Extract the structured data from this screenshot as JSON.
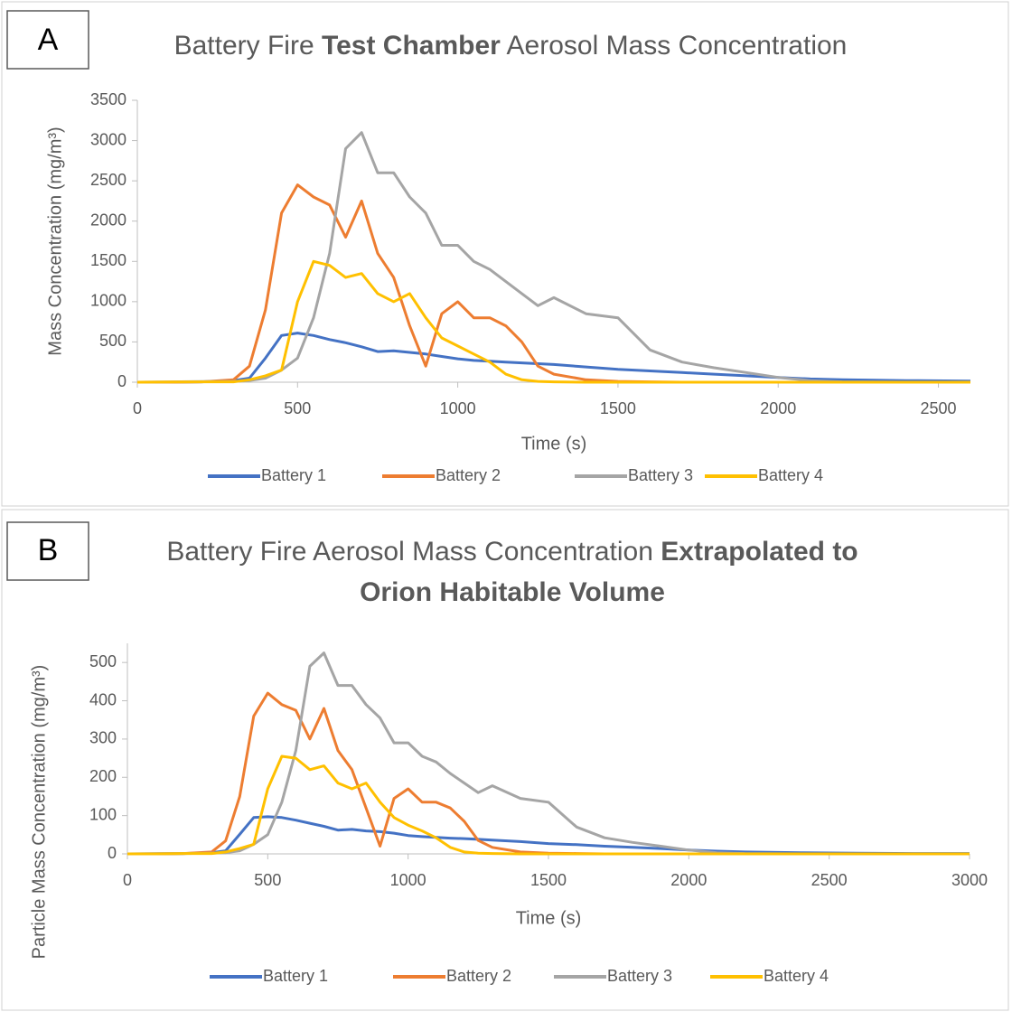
{
  "chart_data": [
    {
      "type": "line",
      "panel_label": "A",
      "title": [
        [
          {
            "text": "Battery Fire",
            "bold": false
          },
          {
            "text": "Test Chamber",
            "bold": true
          },
          {
            "text": "Aerosol Mass Concentration",
            "bold": false
          }
        ]
      ],
      "x_label": "Time (s)",
      "y_label": "Mass Concentration (mg/m³)",
      "xlim": [
        0,
        2600
      ],
      "xticks": [
        0,
        500,
        1000,
        1500,
        2000,
        2500
      ],
      "ylim": [
        0,
        3500
      ],
      "yticks": [
        0,
        500,
        1000,
        1500,
        2000,
        2500,
        3000,
        3500
      ],
      "x": [
        0,
        100,
        200,
        300,
        350,
        400,
        450,
        500,
        550,
        600,
        650,
        700,
        750,
        800,
        850,
        900,
        950,
        1000,
        1050,
        1100,
        1150,
        1200,
        1250,
        1300,
        1400,
        1500,
        1600,
        1700,
        1800,
        1900,
        2000,
        2100,
        2200,
        2400,
        2600
      ],
      "series": [
        {
          "name": "Battery 1",
          "color": "#4472c4",
          "values": [
            0,
            0,
            5,
            20,
            50,
            300,
            580,
            610,
            580,
            530,
            490,
            440,
            380,
            390,
            370,
            350,
            320,
            290,
            270,
            260,
            250,
            240,
            230,
            220,
            190,
            160,
            140,
            120,
            100,
            80,
            60,
            40,
            30,
            20,
            15
          ]
        },
        {
          "name": "Battery 2",
          "color": "#ed7d31",
          "values": [
            0,
            0,
            5,
            30,
            200,
            900,
            2100,
            2450,
            2300,
            2200,
            1800,
            2250,
            1600,
            1300,
            700,
            200,
            850,
            1000,
            800,
            800,
            700,
            500,
            200,
            100,
            30,
            10,
            5,
            0,
            0,
            0,
            0,
            0,
            0,
            0,
            0
          ]
        },
        {
          "name": "Battery 3",
          "color": "#a5a5a5",
          "values": [
            0,
            5,
            8,
            10,
            20,
            50,
            150,
            300,
            800,
            1600,
            2900,
            3100,
            2600,
            2600,
            2300,
            2100,
            1700,
            1700,
            1500,
            1400,
            1250,
            1100,
            950,
            1050,
            850,
            800,
            400,
            250,
            180,
            120,
            60,
            20,
            5,
            0,
            0
          ]
        },
        {
          "name": "Battery 4",
          "color": "#ffc000",
          "values": [
            0,
            2,
            5,
            5,
            30,
            80,
            150,
            1000,
            1500,
            1450,
            1300,
            1350,
            1100,
            1000,
            1100,
            800,
            550,
            450,
            350,
            250,
            100,
            30,
            10,
            5,
            0,
            0,
            0,
            0,
            0,
            0,
            0,
            0,
            0,
            0,
            0
          ]
        }
      ]
    },
    {
      "type": "line",
      "panel_label": "B",
      "title": [
        [
          {
            "text": "Battery Fire Aerosol Mass Concentration",
            "bold": false
          },
          {
            "text": "Extrapolated to",
            "bold": true
          }
        ],
        [
          {
            "text": "Orion Habitable Volume",
            "bold": true
          }
        ]
      ],
      "x_label": "Time (s)",
      "y_label": "Particle Mass Concentration (mg/m³)",
      "xlim": [
        0,
        3000
      ],
      "xticks": [
        0,
        500,
        1000,
        1500,
        2000,
        2500,
        3000
      ],
      "ylim": [
        0,
        550
      ],
      "yticks": [
        0,
        100,
        200,
        300,
        400,
        500
      ],
      "x": [
        0,
        100,
        200,
        300,
        350,
        400,
        450,
        500,
        550,
        600,
        650,
        700,
        750,
        800,
        850,
        900,
        950,
        1000,
        1050,
        1100,
        1150,
        1200,
        1250,
        1300,
        1400,
        1500,
        1600,
        1700,
        1800,
        1900,
        2000,
        2100,
        2200,
        2400,
        2600,
        2800,
        3000
      ],
      "series": [
        {
          "name": "Battery 1",
          "color": "#4472c4",
          "values": [
            0,
            0,
            1,
            3,
            8,
            51,
            95,
            97,
            95,
            88,
            80,
            72,
            62,
            64,
            60,
            58,
            54,
            48,
            45,
            43,
            41,
            40,
            38,
            36,
            32,
            27,
            24,
            20,
            17,
            14,
            10,
            7,
            5,
            3,
            2,
            1,
            1
          ]
        },
        {
          "name": "Battery 2",
          "color": "#ed7d31",
          "values": [
            0,
            0,
            1,
            5,
            34,
            150,
            360,
            420,
            390,
            375,
            300,
            380,
            270,
            220,
            120,
            20,
            145,
            170,
            135,
            135,
            120,
            85,
            35,
            17,
            5,
            2,
            1,
            0,
            0,
            0,
            0,
            0,
            0,
            0,
            0,
            0,
            0
          ]
        },
        {
          "name": "Battery 3",
          "color": "#a5a5a5",
          "values": [
            0,
            1,
            1,
            2,
            3,
            8,
            25,
            50,
            135,
            270,
            490,
            525,
            440,
            440,
            390,
            355,
            290,
            290,
            255,
            240,
            210,
            185,
            160,
            178,
            145,
            135,
            70,
            42,
            30,
            20,
            10,
            3,
            1,
            0,
            0,
            0,
            0
          ]
        },
        {
          "name": "Battery 4",
          "color": "#ffc000",
          "values": [
            0,
            0,
            1,
            1,
            5,
            14,
            25,
            170,
            255,
            250,
            220,
            230,
            185,
            170,
            185,
            135,
            95,
            75,
            60,
            42,
            17,
            5,
            2,
            1,
            0,
            0,
            0,
            0,
            0,
            0,
            0,
            0,
            0,
            0,
            0,
            0,
            0
          ]
        }
      ]
    }
  ]
}
